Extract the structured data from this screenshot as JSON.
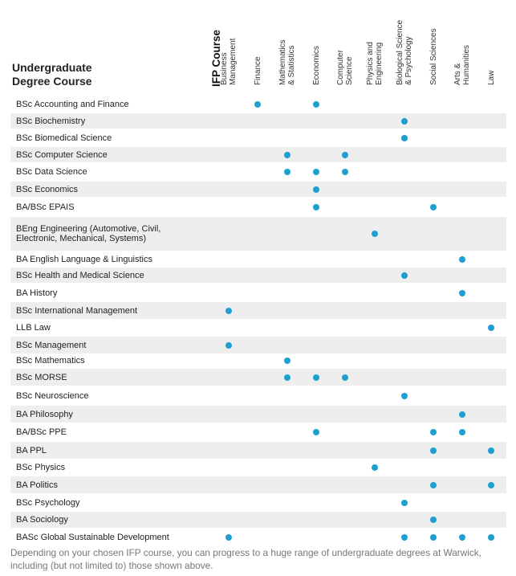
{
  "header": {
    "title_line1": "Undergraduate",
    "title_line2": "Degree Course",
    "ifp_label": "IFP Course"
  },
  "columns": [
    {
      "key": "bm",
      "lines": [
        "Business",
        "Management"
      ]
    },
    {
      "key": "fin",
      "lines": [
        "Finance"
      ]
    },
    {
      "key": "ms",
      "lines": [
        "Mathematics",
        "& Statistics"
      ]
    },
    {
      "key": "eco",
      "lines": [
        "Economics"
      ]
    },
    {
      "key": "cs",
      "lines": [
        "Computer",
        "Science"
      ]
    },
    {
      "key": "pe",
      "lines": [
        "Physics and",
        "Engineering"
      ]
    },
    {
      "key": "bsp",
      "lines": [
        "Biological Science",
        "& Psychology"
      ]
    },
    {
      "key": "ss",
      "lines": [
        "Social Sciences"
      ]
    },
    {
      "key": "ah",
      "lines": [
        "Arts &",
        "Humanities"
      ]
    },
    {
      "key": "law",
      "lines": [
        "Law"
      ]
    }
  ],
  "rows": [
    {
      "label": "BSc Accounting and Finance",
      "marks": [
        "fin",
        "eco"
      ]
    },
    {
      "label": "BSc Biochemistry",
      "marks": [
        "bsp"
      ]
    },
    {
      "label": "BSc Biomedical Science",
      "marks": [
        "bsp"
      ]
    },
    {
      "label": "BSc Computer Science",
      "marks": [
        "ms",
        "cs"
      ]
    },
    {
      "label": "BSc Data Science",
      "marks": [
        "ms",
        "eco",
        "cs"
      ]
    },
    {
      "label": "BSc Economics",
      "marks": [
        "eco"
      ]
    },
    {
      "label": "BA/BSc EPAIS",
      "marks": [
        "eco",
        "ss"
      ]
    },
    {
      "label": "BEng Engineering (Automotive, Civil,\nElectronic, Mechanical, Systems)",
      "marks": [
        "pe"
      ]
    },
    {
      "label": "BA English Language & Linguistics",
      "marks": [
        "ah"
      ]
    },
    {
      "label": "BSc Health and Medical Science",
      "marks": [
        "bsp"
      ]
    },
    {
      "label": "BA History",
      "marks": [
        "ah"
      ]
    },
    {
      "label": "BSc International Management",
      "marks": [
        "bm"
      ]
    },
    {
      "label": "LLB Law",
      "marks": [
        "law"
      ]
    },
    {
      "label": "BSc Management",
      "marks": [
        "bm"
      ]
    },
    {
      "label": "BSc Mathematics",
      "marks": [
        "ms"
      ]
    },
    {
      "label": "BSc MORSE",
      "marks": [
        "ms",
        "eco",
        "cs"
      ]
    },
    {
      "label": "BSc Neuroscience",
      "marks": [
        "bsp"
      ]
    },
    {
      "label": "BA Philosophy",
      "marks": [
        "ah"
      ]
    },
    {
      "label": "BA/BSc PPE",
      "marks": [
        "eco",
        "ss",
        "ah"
      ]
    },
    {
      "label": "BA PPL",
      "marks": [
        "ss",
        "law"
      ]
    },
    {
      "label": "BSc Physics",
      "marks": [
        "pe"
      ]
    },
    {
      "label": "BA Politics",
      "marks": [
        "ss",
        "law"
      ]
    },
    {
      "label": "BSc Psychology",
      "marks": [
        "bsp"
      ]
    },
    {
      "label": "BA Sociology",
      "marks": [
        "ss"
      ]
    },
    {
      "label": "BASc Global Sustainable Development",
      "marks": [
        "bm",
        "bsp",
        "ss",
        "ah",
        "law"
      ]
    }
  ],
  "colors": {
    "dot": "#1e9fd0",
    "stripe": "#eeeeee"
  },
  "footer": "Depending on your chosen IFP course, you can progress to a huge range of undergraduate degrees at Warwick, including (but not limited to) those shown above."
}
